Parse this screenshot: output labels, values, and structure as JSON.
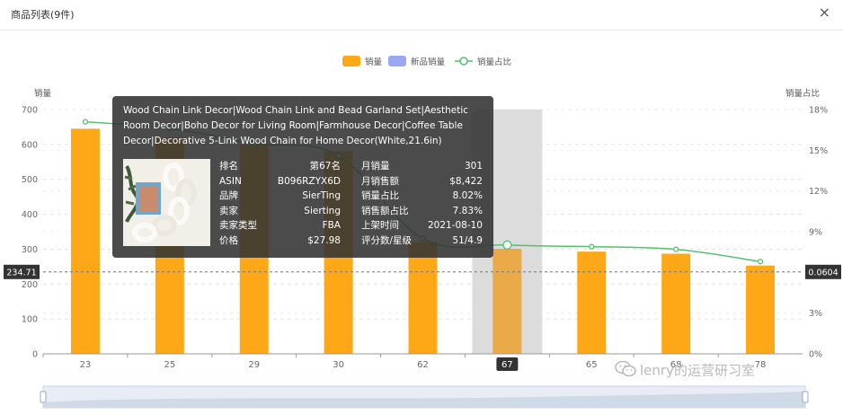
{
  "modal": {
    "title": "商品列表(9件)",
    "close_icon": "×"
  },
  "legend": [
    {
      "name": "销量",
      "color": "#fea818",
      "kind": "bar"
    },
    {
      "name": "新品销量",
      "color": "#9aa8f1",
      "kind": "bar"
    },
    {
      "name": "销量占比",
      "color": "#55c16f",
      "kind": "line"
    }
  ],
  "chart_data": {
    "type": "bar",
    "categories": [
      "23",
      "25",
      "29",
      "30",
      "62",
      "67",
      "65",
      "68",
      "78"
    ],
    "series": [
      {
        "name": "销量",
        "values": [
          645,
          620,
          600,
          580,
          320,
          301,
          293,
          287,
          253
        ]
      },
      {
        "name": "销量占比",
        "values": [
          17.1,
          16.6,
          15.5,
          14.6,
          8.5,
          8.02,
          7.9,
          7.7,
          6.8
        ]
      }
    ],
    "ylabel_left": "销量",
    "ylabel_right": "销量占比",
    "ylim_left": [
      0,
      700
    ],
    "yticks_left": [
      "0",
      "100",
      "200",
      "300",
      "400",
      "500",
      "600",
      "700"
    ],
    "ylim_right": [
      0,
      18
    ],
    "yticks_right": [
      "0%",
      "3%",
      "6%",
      "9%",
      "12%",
      "15%",
      "18%"
    ],
    "highlight_category": "67",
    "crosshair": {
      "left_label": "234.71",
      "right_label": "0.0604",
      "left_value": 234.71
    },
    "grid": true
  },
  "tooltip": {
    "title": "Wood Chain Link Decor|Wood Chain Link and Bead Garland Set|Aesthetic Room Decor|Boho Decor for Living Room|Farmhouse Decor|Coffee Table Decor|Decorative 5-Link Wood Chain for Home Decor(White,21.6in)",
    "left_rows": [
      {
        "label": "排名",
        "value": "第67名"
      },
      {
        "label": "ASIN",
        "value": "B096RZYX6D"
      },
      {
        "label": "品牌",
        "value": "SierTing"
      },
      {
        "label": "卖家",
        "value": "Sierting"
      },
      {
        "label": "卖家类型",
        "value": "FBA"
      },
      {
        "label": "价格",
        "value": "$27.98"
      }
    ],
    "right_rows": [
      {
        "label": "月销量",
        "value": "301"
      },
      {
        "label": "月销售额",
        "value": "$8,422"
      },
      {
        "label": "销量占比",
        "value": "8.02%"
      },
      {
        "label": "销售额占比",
        "value": "7.83%"
      },
      {
        "label": "上架时间",
        "value": "2021-08-10"
      },
      {
        "label": "评分数/星级",
        "value": "51/4.9"
      }
    ]
  },
  "watermark": {
    "text": "lenry的运营研习室",
    "icon": "wechat-icon"
  }
}
